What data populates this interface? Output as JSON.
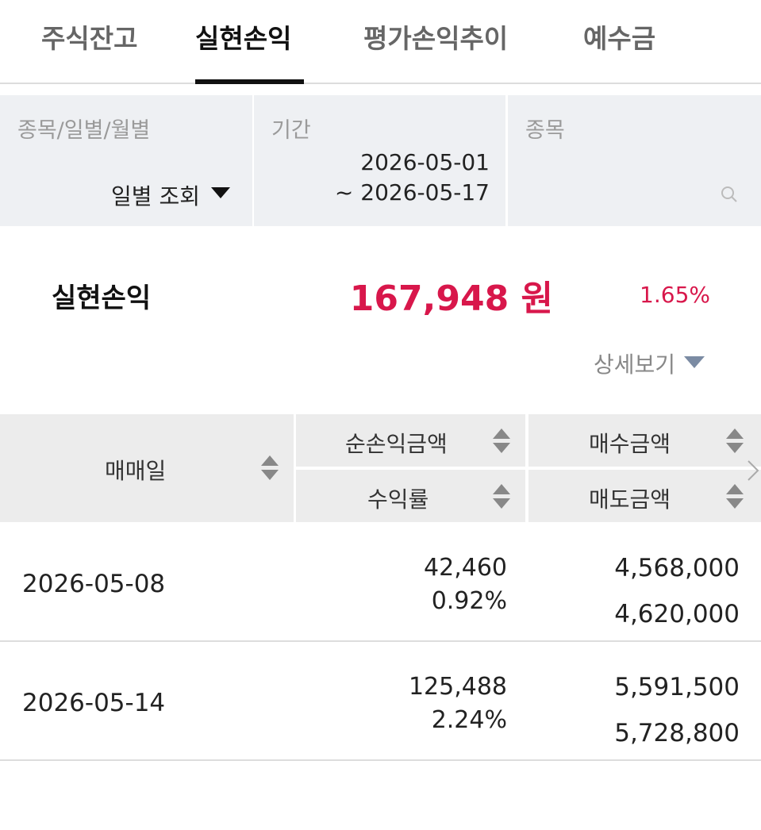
{
  "tabs": [
    "주식잔고",
    "실현손익",
    "평가손익추이",
    "예수금"
  ],
  "filters": {
    "type_label": "종목/일별/월별",
    "type_value": "일별 조회",
    "period_label": "기간",
    "period_start": "2026-05-01",
    "period_end": "~ 2026-05-17",
    "stock_label": "종목"
  },
  "summary": {
    "label": "실현손익",
    "amount": "167,948 원",
    "rate": "1.65%",
    "detail": "상세보기"
  },
  "table": {
    "header": {
      "date": "매매일",
      "profit": "순손익금액",
      "rate": "수익률",
      "buy": "매수금액",
      "sell": "매도금액"
    },
    "rows": [
      {
        "date": "2026-05-08",
        "profit": "42,460",
        "rate": "0.92%",
        "buy": "4,568,000",
        "sell": "4,620,000"
      },
      {
        "date": "2026-05-14",
        "profit": "125,488",
        "rate": "2.24%",
        "buy": "5,591,500",
        "sell": "5,728,800"
      }
    ]
  }
}
